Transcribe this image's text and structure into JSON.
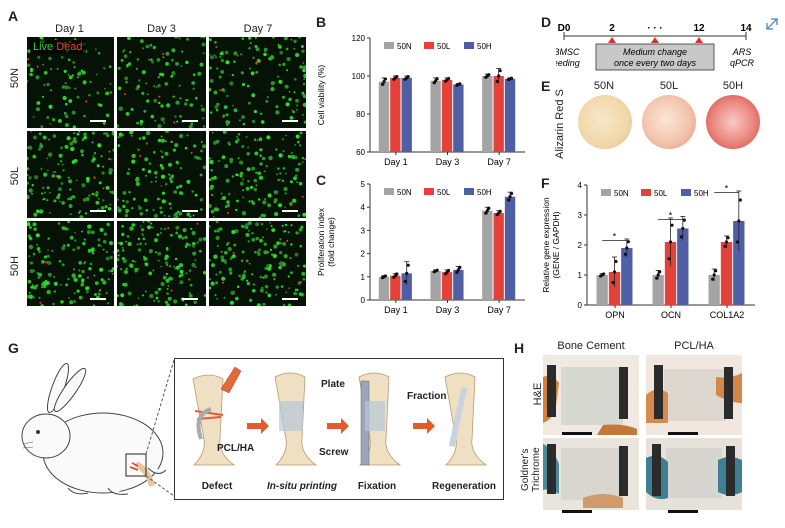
{
  "panels": {
    "A": "A",
    "B": "B",
    "C": "C",
    "D": "D",
    "E": "E",
    "F": "F",
    "G": "G",
    "H": "H"
  },
  "micro": {
    "days": [
      "Day 1",
      "Day 3",
      "Day 7"
    ],
    "rows": [
      "50N",
      "50L",
      "50H"
    ],
    "legend_live": "Live",
    "legend_dead": "Dead",
    "density": [
      [
        0.55,
        0.65,
        0.8
      ],
      [
        0.85,
        0.75,
        0.85
      ],
      [
        0.9,
        0.9,
        0.95
      ]
    ]
  },
  "colors": {
    "50N": "#a4a4a4",
    "50L": "#e5413b",
    "50H": "#4f5fa6",
    "live": "#33cc33",
    "dead": "#ff3333"
  },
  "chart_data": [
    {
      "id": "B",
      "type": "bar",
      "ylabel": "Cell viability (%)",
      "categories": [
        "Day 1",
        "Day 3",
        "Day 7"
      ],
      "ylim": [
        60,
        120
      ],
      "yticks": [
        60,
        80,
        100,
        120
      ],
      "legend": [
        "50N",
        "50L",
        "50H"
      ],
      "series": [
        {
          "name": "50N",
          "values": [
            97,
            97.5,
            100
          ]
        },
        {
          "name": "50L",
          "values": [
            99,
            98,
            100
          ]
        },
        {
          "name": "50H",
          "values": [
            99,
            95.5,
            98.5
          ]
        }
      ],
      "errors": [
        [
          2,
          1,
          1
        ],
        [
          1.5,
          1,
          0.5
        ],
        [
          1,
          4,
          0.5
        ]
      ]
    },
    {
      "id": "C",
      "type": "bar",
      "ylabel": "Proliferation index\n(fold change)",
      "categories": [
        "Day 1",
        "Day 3",
        "Day 7"
      ],
      "ylim": [
        0,
        5
      ],
      "yticks": [
        0,
        1,
        2,
        3,
        4,
        5
      ],
      "legend": [
        "50N",
        "50L",
        "50H"
      ],
      "series": [
        {
          "name": "50N",
          "values": [
            1.0,
            1.25,
            3.85
          ]
        },
        {
          "name": "50L",
          "values": [
            1.05,
            1.2,
            3.75
          ]
        },
        {
          "name": "50H",
          "values": [
            1.15,
            1.3,
            4.45
          ]
        }
      ],
      "errors": [
        [
          0.05,
          0.1,
          0.5
        ],
        [
          0.05,
          0.1,
          0.15
        ],
        [
          0.15,
          0.1,
          0.2
        ]
      ]
    },
    {
      "id": "F",
      "type": "bar",
      "ylabel": "Relative gene expression\n(GENE / GAPDH)",
      "categories": [
        "OPN",
        "OCN",
        "COL1A2"
      ],
      "ylim": [
        0,
        4
      ],
      "yticks": [
        0,
        1,
        2,
        3,
        4
      ],
      "legend": [
        "50N",
        "50L",
        "50H"
      ],
      "series": [
        {
          "name": "50N",
          "values": [
            1.0,
            1.0,
            1.0
          ]
        },
        {
          "name": "50L",
          "values": [
            1.1,
            2.1,
            2.1
          ]
        },
        {
          "name": "50H",
          "values": [
            1.9,
            2.55,
            2.8
          ]
        }
      ],
      "errors": [
        [
          0.05,
          0.5,
          0.3
        ],
        [
          0.15,
          0.8,
          0.4
        ],
        [
          0.2,
          0.2,
          1.0
        ]
      ],
      "significance": "*"
    }
  ],
  "timeline": {
    "ticks": [
      "D0",
      "2",
      "12",
      "14"
    ],
    "dots": "· · ·",
    "left_caption": [
      "hBMSC",
      "seeding"
    ],
    "box_text": [
      "Medium change",
      "once every two days"
    ],
    "right_caption": [
      "ARS",
      "qPCR"
    ]
  },
  "staining": {
    "side_label": "Alizarin Red S",
    "groups": [
      "50N",
      "50L",
      "50H"
    ]
  },
  "surgery": {
    "steps": [
      "Defect",
      "In-situ printing",
      "Fixation",
      "Regeneration"
    ],
    "callouts": {
      "pclha": "PCL/HA",
      "plate": "Plate",
      "screw": "Screw",
      "fraction": "Fraction"
    }
  },
  "histology": {
    "columns": [
      "Bone Cement",
      "PCL/HA"
    ],
    "rows": [
      "H&E",
      "Goldner's\nTrichrome"
    ]
  }
}
